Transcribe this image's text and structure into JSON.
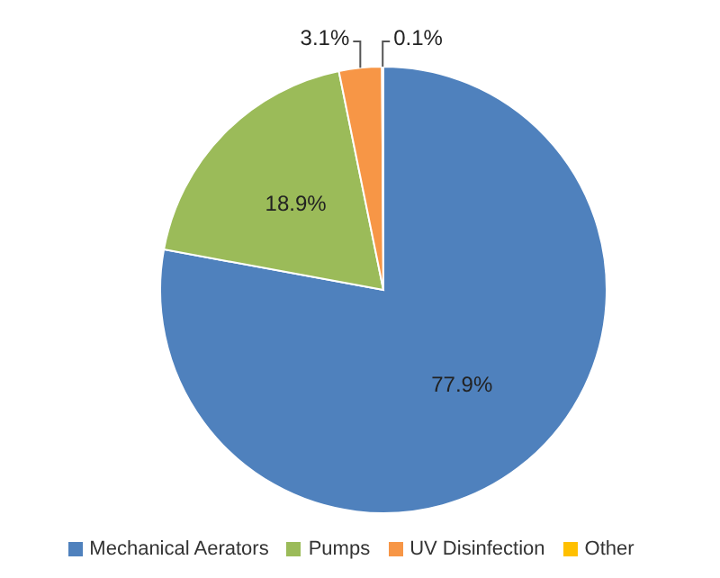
{
  "chart_data": {
    "type": "pie",
    "categories": [
      "Mechanical Aerators",
      "Pumps",
      "UV Disinfection",
      "Other"
    ],
    "values": [
      77.9,
      18.9,
      3.1,
      0.1
    ],
    "colors": [
      "#4f81bd",
      "#9bbb59",
      "#f79646",
      "#ffc000"
    ],
    "value_labels": [
      "77.9%",
      "18.9%",
      "3.1%",
      "0.1%"
    ],
    "legend": "bottom"
  }
}
